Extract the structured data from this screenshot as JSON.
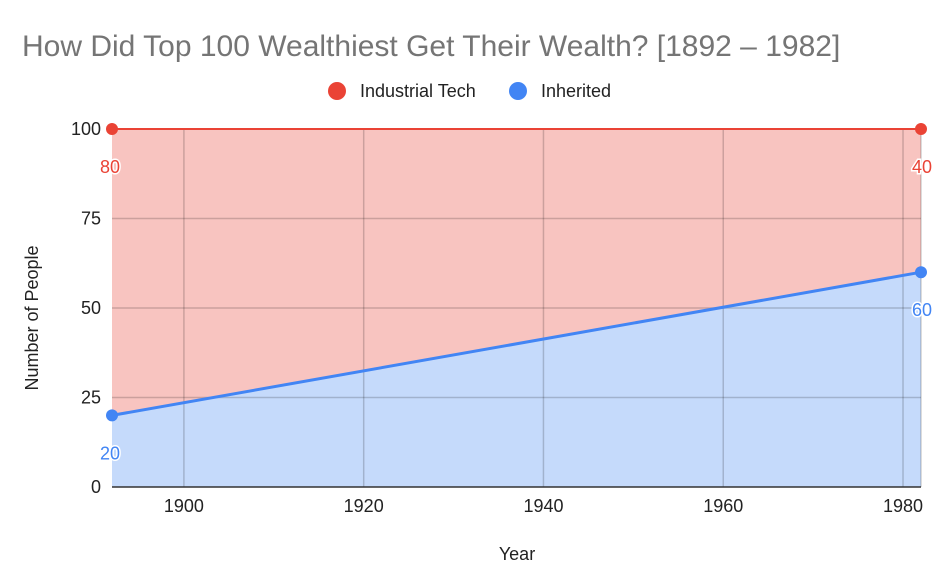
{
  "chart_data": {
    "type": "area",
    "title": "How Did Top 100 Wealthiest Get Their Wealth? [1892 – 1982]",
    "xlabel": "Year",
    "ylabel": "Number of People",
    "stacked": true,
    "x": [
      1892,
      1982
    ],
    "xlim": [
      1892,
      1982
    ],
    "ylim": [
      0,
      100
    ],
    "xticks": [
      1900,
      1920,
      1940,
      1960,
      1980
    ],
    "yticks": [
      0,
      25,
      50,
      75,
      100
    ],
    "grid": true,
    "legend_position": "top",
    "series": [
      {
        "name": "Industrial Tech",
        "values": [
          80,
          40
        ],
        "color": "#ea4335",
        "fill": "#f8c4c0",
        "data_labels": [
          "80",
          "40"
        ]
      },
      {
        "name": "Inherited",
        "values": [
          20,
          60
        ],
        "color": "#4285f4",
        "fill": "#c5dafb",
        "data_labels": [
          "20",
          "60"
        ]
      }
    ]
  }
}
